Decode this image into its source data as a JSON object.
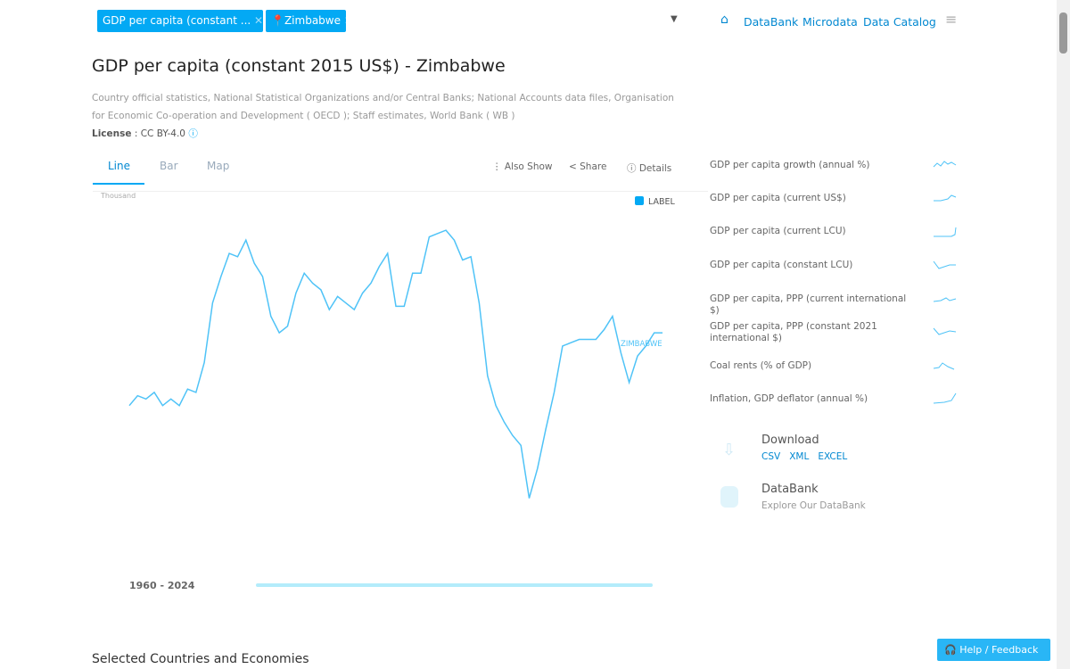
{
  "header": {
    "chips": [
      "GDP per capita (constant ...",
      "Zimbabwe"
    ],
    "nav": [
      "DataBank",
      "Microdata",
      "Data Catalog"
    ]
  },
  "title": "GDP per capita (constant 2015 US$) - Zimbabwe",
  "source": "Country official statistics, National Statistical Organizations and/or Central Banks; National Accounts data files, Organisation for Economic Co-operation and Development ( OECD ); Staff estimates, World Bank ( WB )",
  "license": {
    "label": "License",
    "value": " : CC BY-4.0"
  },
  "tabs": [
    "Line",
    "Bar",
    "Map"
  ],
  "tools": [
    "Also Show",
    "Share",
    "Details"
  ],
  "chart_data": {
    "type": "line",
    "y_unit": "Thousand",
    "label_toggle": "LABEL",
    "x": [
      1960,
      1961,
      1962,
      1963,
      1964,
      1965,
      1966,
      1967,
      1968,
      1969,
      1970,
      1971,
      1972,
      1973,
      1974,
      1975,
      1976,
      1977,
      1978,
      1979,
      1980,
      1981,
      1982,
      1983,
      1984,
      1985,
      1986,
      1987,
      1988,
      1989,
      1990,
      1991,
      1992,
      1993,
      1994,
      1995,
      1996,
      1997,
      1998,
      1999,
      2000,
      2001,
      2002,
      2003,
      2004,
      2005,
      2006,
      2007,
      2008,
      2009,
      2010,
      2011,
      2012,
      2013,
      2014,
      2015,
      2016,
      2017,
      2018,
      2019,
      2020,
      2021,
      2022,
      2023,
      2024
    ],
    "series": [
      {
        "name": "ZIMBABWE",
        "color": "#4fc3f7",
        "values": [
          1.27,
          1.3,
          1.29,
          1.31,
          1.27,
          1.29,
          1.27,
          1.32,
          1.31,
          1.4,
          1.58,
          1.66,
          1.73,
          1.72,
          1.77,
          1.7,
          1.66,
          1.54,
          1.49,
          1.51,
          1.61,
          1.67,
          1.64,
          1.62,
          1.56,
          1.6,
          1.58,
          1.56,
          1.61,
          1.64,
          1.69,
          1.73,
          1.57,
          1.57,
          1.67,
          1.67,
          1.78,
          1.79,
          1.8,
          1.77,
          1.71,
          1.72,
          1.58,
          1.36,
          1.27,
          1.22,
          1.18,
          1.15,
          0.99,
          1.08,
          1.2,
          1.31,
          1.45,
          1.46,
          1.47,
          1.47,
          1.47,
          1.5,
          1.54,
          1.43,
          1.34,
          1.42,
          1.45,
          1.49,
          1.49
        ]
      }
    ],
    "xlim": [
      1960,
      2024
    ],
    "ylim": [
      0.9,
      1.9
    ],
    "range_label": "1960 - 2024"
  },
  "related": [
    "GDP per capita growth (annual %)",
    "GDP per capita (current US$)",
    "GDP per capita (current LCU)",
    "GDP per capita (constant LCU)",
    "GDP per capita, PPP (current international $)",
    "GDP per capita, PPP (constant 2021 international $)",
    "Coal rents (% of GDP)",
    "Inflation, GDP deflator (annual %)"
  ],
  "download": {
    "title": "Download",
    "links": [
      "CSV",
      "XML",
      "EXCEL"
    ]
  },
  "databank": {
    "title": "DataBank",
    "subtitle": "Explore Our DataBank"
  },
  "section_title": "Selected Countries and Economies",
  "help": "Help / Feedback"
}
